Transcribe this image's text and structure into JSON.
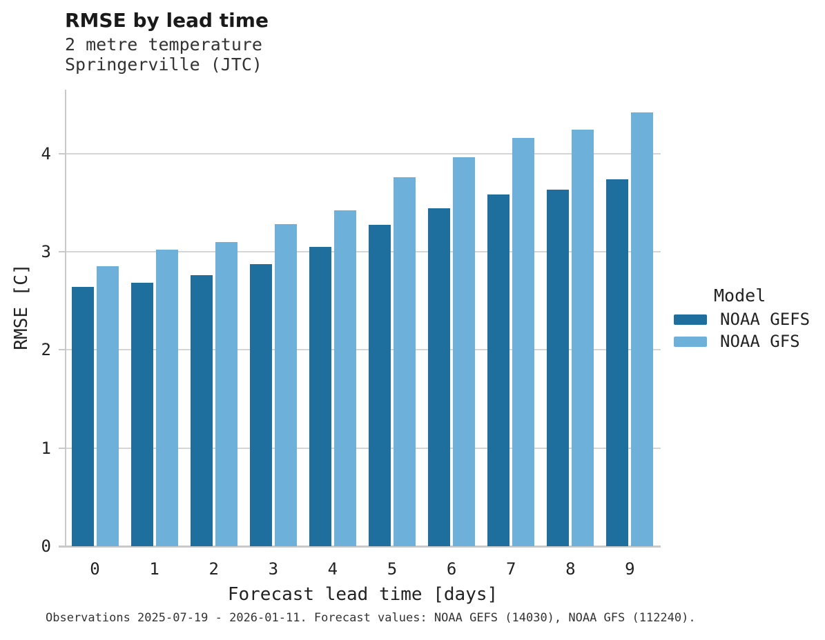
{
  "chart_data": {
    "type": "bar",
    "title": "RMSE by lead time",
    "subtitle": [
      "2 metre temperature",
      "Springerville (JTC)"
    ],
    "xlabel": "Forecast lead time [days]",
    "ylabel": "RMSE [C]",
    "categories": [
      0,
      1,
      2,
      3,
      4,
      5,
      6,
      7,
      8,
      9
    ],
    "series": [
      {
        "name": "NOAA GEFS",
        "color": "#1f6f9e",
        "values": [
          2.64,
          2.68,
          2.76,
          2.87,
          3.05,
          3.27,
          3.44,
          3.58,
          3.63,
          3.74
        ]
      },
      {
        "name": "NOAA GFS",
        "color": "#6db1da",
        "values": [
          2.85,
          3.02,
          3.1,
          3.28,
          3.42,
          3.76,
          3.96,
          4.16,
          4.24,
          4.42
        ]
      }
    ],
    "ylim": [
      0,
      4.65
    ],
    "yticks": [
      0,
      1,
      2,
      3,
      4
    ],
    "grid": "horizontal",
    "legend_position": "right",
    "legend_title": "Model",
    "caption": "Observations 2025-07-19 - 2026-01-11. Forecast values: NOAA GEFS (14030), NOAA GFS (112240)."
  },
  "colors": {
    "grid": "#d5d5d5",
    "axis": "#c9c9c9",
    "title_text": "#1a1a1a",
    "tick_text": "#222222",
    "muted_text": "#333333"
  }
}
